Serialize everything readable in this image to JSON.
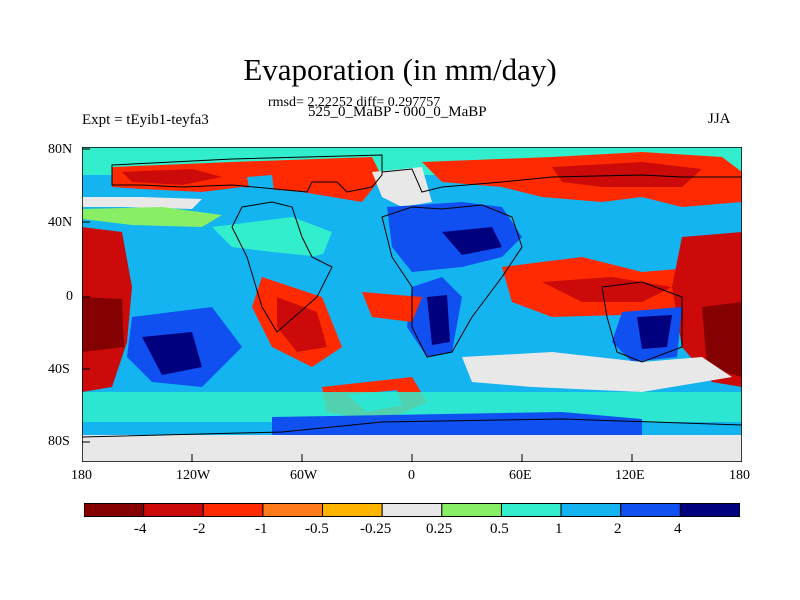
{
  "title": "Evaporation (in mm/day)",
  "stats": "rmsd= 2.22252 diff= 0.297757",
  "experiment": "Expt = tEyib1-teyfa3",
  "period": "525_0_MaBP - 000_0_MaBP",
  "season": "JJA",
  "y_ticks": [
    "80N",
    "40N",
    "0",
    "40S",
    "80S"
  ],
  "x_ticks": [
    "180",
    "120W",
    "60W",
    "0",
    "60E",
    "120E",
    "180"
  ],
  "colorbar": {
    "labels": [
      "-4",
      "-2",
      "-1",
      "-0.5",
      "-0.25",
      "0.25",
      "0.5",
      "1",
      "2",
      "4"
    ],
    "colors": [
      "#850000",
      "#cc0a0a",
      "#ff2a00",
      "#ff7a1a",
      "#ffb400",
      "#e8e8e8",
      "#88ee66",
      "#33eecc",
      "#13b4f0",
      "#1050f0",
      "#00007f"
    ]
  },
  "map_colors": {
    "dark_red": "#850000",
    "red": "#cc0a0a",
    "orange_red": "#ff2a00",
    "light_gray": "#e8e8e8",
    "green": "#88ee66",
    "cyan": "#33eecc",
    "sky_blue": "#13b4f0",
    "blue": "#1050f0",
    "navy": "#00007f"
  }
}
